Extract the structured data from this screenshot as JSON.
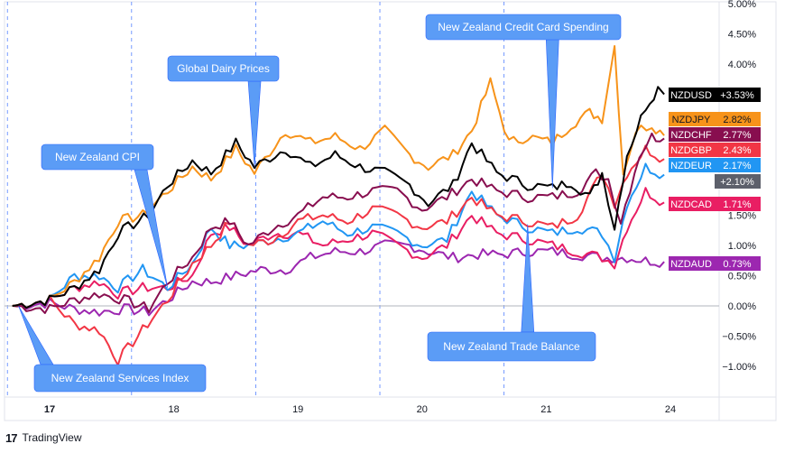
{
  "chart_data": {
    "type": "line",
    "y_unit": "percent",
    "ylim": [
      -1.3,
      5.0
    ],
    "y_ticks": [
      "5.00%",
      "4.50%",
      "4.00%",
      "1.50%",
      "1.00%",
      "0.50%",
      "0.00%",
      "−0.50%",
      "−1.00%"
    ],
    "y_tick_values": [
      5.0,
      4.5,
      4.0,
      1.5,
      1.0,
      0.5,
      0.0,
      -0.5,
      -1.0
    ],
    "x_ticks": [
      "17",
      "18",
      "19",
      "20",
      "21",
      "24"
    ],
    "x_tick_values": [
      0,
      1,
      2,
      3,
      4,
      5
    ],
    "grid": "vertical dashed session lines",
    "series": [
      {
        "name": "NZDUSD",
        "value_label": "+3.53%",
        "final": 3.53,
        "color": "#000000",
        "text_color": "#ffffff",
        "keypoints": [
          [
            -0.3,
            0
          ],
          [
            0,
            0.1
          ],
          [
            0.2,
            0.3
          ],
          [
            0.4,
            0.6
          ],
          [
            0.55,
            1.2
          ],
          [
            0.8,
            1.5
          ],
          [
            0.95,
            2.0
          ],
          [
            1.15,
            2.4
          ],
          [
            1.3,
            2.2
          ],
          [
            1.5,
            2.7
          ],
          [
            1.65,
            2.3
          ],
          [
            1.9,
            2.6
          ],
          [
            2.1,
            2.3
          ],
          [
            2.3,
            2.5
          ],
          [
            2.5,
            2.3
          ],
          [
            2.7,
            2.2
          ],
          [
            2.9,
            2.0
          ],
          [
            3.05,
            1.7
          ],
          [
            3.25,
            2.0
          ],
          [
            3.4,
            2.7
          ],
          [
            3.6,
            2.2
          ],
          [
            3.85,
            2.0
          ],
          [
            4.05,
            1.95
          ],
          [
            4.2,
            2.05
          ],
          [
            4.35,
            1.8
          ],
          [
            4.45,
            2.2
          ],
          [
            4.55,
            1.3
          ],
          [
            4.65,
            2.5
          ],
          [
            4.8,
            3.3
          ],
          [
            4.9,
            3.6
          ],
          [
            4.95,
            3.5
          ]
        ]
      },
      {
        "name": "NZDJPY",
        "value_label": "2.82%",
        "final": 2.82,
        "color": "#f7931a",
        "text_color": "#131722",
        "keypoints": [
          [
            -0.3,
            0
          ],
          [
            0,
            0.1
          ],
          [
            0.2,
            0.4
          ],
          [
            0.4,
            0.8
          ],
          [
            0.55,
            1.4
          ],
          [
            0.75,
            1.5
          ],
          [
            0.95,
            1.9
          ],
          [
            1.15,
            2.3
          ],
          [
            1.3,
            2.1
          ],
          [
            1.5,
            2.6
          ],
          [
            1.65,
            2.2
          ],
          [
            1.9,
            2.9
          ],
          [
            2.1,
            2.7
          ],
          [
            2.3,
            2.8
          ],
          [
            2.5,
            2.6
          ],
          [
            2.7,
            2.9
          ],
          [
            2.9,
            2.5
          ],
          [
            3.05,
            2.3
          ],
          [
            3.25,
            2.5
          ],
          [
            3.4,
            2.9
          ],
          [
            3.55,
            3.7
          ],
          [
            3.7,
            2.7
          ],
          [
            3.85,
            2.8
          ],
          [
            4.05,
            2.7
          ],
          [
            4.2,
            3.0
          ],
          [
            4.35,
            3.2
          ],
          [
            4.45,
            3.1
          ],
          [
            4.55,
            4.3
          ],
          [
            4.62,
            2.2
          ],
          [
            4.72,
            2.9
          ],
          [
            4.85,
            3.0
          ],
          [
            4.95,
            2.82
          ]
        ]
      },
      {
        "name": "NZDCHF",
        "value_label": "2.77%",
        "final": 2.77,
        "color": "#880e4f",
        "text_color": "#ffffff",
        "keypoints": [
          [
            -0.3,
            0
          ],
          [
            0,
            -0.05
          ],
          [
            0.2,
            0.1
          ],
          [
            0.4,
            0.2
          ],
          [
            0.6,
            0.1
          ],
          [
            0.8,
            -0.05
          ],
          [
            0.95,
            0.4
          ],
          [
            1.15,
            0.8
          ],
          [
            1.3,
            1.3
          ],
          [
            1.45,
            1.4
          ],
          [
            1.6,
            1.0
          ],
          [
            1.8,
            1.3
          ],
          [
            2.0,
            1.5
          ],
          [
            2.2,
            1.8
          ],
          [
            2.4,
            1.8
          ],
          [
            2.6,
            1.9
          ],
          [
            2.8,
            1.9
          ],
          [
            3.0,
            1.6
          ],
          [
            3.2,
            1.8
          ],
          [
            3.4,
            2.1
          ],
          [
            3.6,
            1.9
          ],
          [
            3.85,
            1.8
          ],
          [
            4.05,
            1.8
          ],
          [
            4.25,
            1.9
          ],
          [
            4.4,
            2.2
          ],
          [
            4.5,
            2.1
          ],
          [
            4.6,
            1.4
          ],
          [
            4.75,
            2.5
          ],
          [
            4.85,
            2.8
          ],
          [
            4.95,
            2.77
          ]
        ]
      },
      {
        "name": "NZDGBP",
        "value_label": "2.43%",
        "final": 2.43,
        "color": "#f23645",
        "text_color": "#ffffff",
        "keypoints": [
          [
            -0.3,
            0
          ],
          [
            0,
            0.1
          ],
          [
            0.2,
            -0.3
          ],
          [
            0.4,
            -0.4
          ],
          [
            0.55,
            -0.9
          ],
          [
            0.75,
            -0.4
          ],
          [
            0.95,
            0.1
          ],
          [
            1.15,
            0.7
          ],
          [
            1.3,
            1.0
          ],
          [
            1.45,
            1.4
          ],
          [
            1.6,
            1.0
          ],
          [
            1.8,
            1.1
          ],
          [
            2.0,
            1.4
          ],
          [
            2.2,
            1.5
          ],
          [
            2.4,
            1.4
          ],
          [
            2.6,
            1.6
          ],
          [
            2.8,
            1.5
          ],
          [
            3.0,
            1.3
          ],
          [
            3.2,
            1.4
          ],
          [
            3.4,
            1.8
          ],
          [
            3.6,
            1.5
          ],
          [
            3.85,
            1.4
          ],
          [
            4.05,
            1.3
          ],
          [
            4.25,
            1.5
          ],
          [
            4.45,
            2.2
          ],
          [
            4.55,
            1.7
          ],
          [
            4.65,
            2.2
          ],
          [
            4.8,
            2.6
          ],
          [
            4.95,
            2.43
          ]
        ]
      },
      {
        "name": "NZDEUR",
        "value_label": "2.17%",
        "final": 2.17,
        "color": "#2196f3",
        "text_color": "#ffffff",
        "keypoints": [
          [
            -0.3,
            0
          ],
          [
            0,
            0.1
          ],
          [
            0.2,
            0.5
          ],
          [
            0.4,
            0.5
          ],
          [
            0.55,
            0.3
          ],
          [
            0.75,
            0.6
          ],
          [
            0.95,
            0.3
          ],
          [
            1.15,
            0.7
          ],
          [
            1.3,
            1.3
          ],
          [
            1.45,
            1.0
          ],
          [
            1.6,
            1.0
          ],
          [
            1.8,
            1.1
          ],
          [
            2.0,
            1.2
          ],
          [
            2.2,
            1.4
          ],
          [
            2.4,
            1.2
          ],
          [
            2.6,
            1.3
          ],
          [
            2.8,
            1.2
          ],
          [
            3.0,
            1.0
          ],
          [
            3.2,
            1.1
          ],
          [
            3.4,
            1.9
          ],
          [
            3.6,
            1.5
          ],
          [
            3.85,
            1.3
          ],
          [
            4.05,
            1.2
          ],
          [
            4.25,
            1.3
          ],
          [
            4.45,
            1.2
          ],
          [
            4.55,
            0.8
          ],
          [
            4.65,
            1.7
          ],
          [
            4.8,
            2.3
          ],
          [
            4.95,
            2.17
          ]
        ]
      },
      {
        "name": "NZDCAD",
        "value_label": "1.71%",
        "final": 1.71,
        "color": "#e91e63",
        "text_color": "#ffffff",
        "keypoints": [
          [
            -0.3,
            0
          ],
          [
            0,
            0.1
          ],
          [
            0.2,
            0.3
          ],
          [
            0.4,
            0.4
          ],
          [
            0.55,
            0.2
          ],
          [
            0.75,
            0.3
          ],
          [
            0.95,
            0.3
          ],
          [
            1.15,
            0.5
          ],
          [
            1.3,
            1.2
          ],
          [
            1.45,
            1.3
          ],
          [
            1.6,
            1.0
          ],
          [
            1.8,
            1.2
          ],
          [
            2.0,
            1.2
          ],
          [
            2.2,
            1.0
          ],
          [
            2.4,
            1.1
          ],
          [
            2.6,
            1.2
          ],
          [
            2.8,
            1.0
          ],
          [
            3.0,
            0.8
          ],
          [
            3.2,
            1.0
          ],
          [
            3.4,
            1.5
          ],
          [
            3.6,
            1.2
          ],
          [
            3.85,
            1.1
          ],
          [
            4.05,
            1.0
          ],
          [
            4.25,
            0.9
          ],
          [
            4.45,
            0.8
          ],
          [
            4.55,
            0.7
          ],
          [
            4.65,
            1.3
          ],
          [
            4.8,
            1.9
          ],
          [
            4.95,
            1.71
          ]
        ]
      },
      {
        "name": "NZDAUD",
        "value_label": "0.73%",
        "final": 0.73,
        "color": "#9c27b0",
        "text_color": "#ffffff",
        "keypoints": [
          [
            -0.3,
            0
          ],
          [
            0,
            0.05
          ],
          [
            0.2,
            -0.05
          ],
          [
            0.4,
            -0.1
          ],
          [
            0.6,
            -0.05
          ],
          [
            0.8,
            -0.1
          ],
          [
            0.95,
            0.1
          ],
          [
            1.15,
            0.4
          ],
          [
            1.3,
            0.4
          ],
          [
            1.5,
            0.5
          ],
          [
            1.7,
            0.6
          ],
          [
            1.9,
            0.6
          ],
          [
            2.1,
            0.8
          ],
          [
            2.3,
            0.9
          ],
          [
            2.5,
            0.9
          ],
          [
            2.7,
            1.0
          ],
          [
            2.9,
            1.0
          ],
          [
            3.05,
            0.9
          ],
          [
            3.25,
            0.8
          ],
          [
            3.45,
            0.85
          ],
          [
            3.65,
            0.85
          ],
          [
            3.85,
            0.9
          ],
          [
            4.05,
            0.9
          ],
          [
            4.25,
            0.85
          ],
          [
            4.45,
            0.8
          ],
          [
            4.65,
            0.8
          ],
          [
            4.8,
            0.75
          ],
          [
            4.95,
            0.73
          ]
        ]
      }
    ],
    "extra_label": "+2.10%",
    "annotations": [
      {
        "text": "New Zealand Credit Card Spending",
        "target_x": 4.05,
        "target_y": 1.95
      },
      {
        "text": "Global Dairy Prices",
        "target_x": 1.65,
        "target_y": 2.3
      },
      {
        "text": "New Zealand CPI",
        "target_x": 0.95,
        "target_y": 0.3
      },
      {
        "text": "New Zealand Trade Balance",
        "target_x": 3.85,
        "target_y": 1.35
      },
      {
        "text": "New Zealand Services Index",
        "target_x": -0.25,
        "target_y": 0.0
      }
    ]
  },
  "footer": {
    "brand_logo": "17",
    "brand_name": "TradingView"
  }
}
